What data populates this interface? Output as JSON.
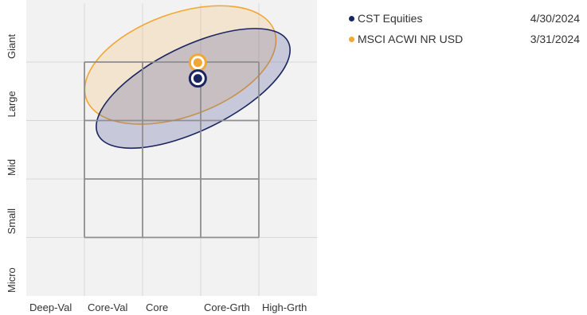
{
  "chart_data": {
    "type": "scatter",
    "title": "",
    "x_categories": [
      "Deep-Val",
      "Core-Val",
      "Core",
      "Core-Grth",
      "High-Grth"
    ],
    "y_categories": [
      "Micro",
      "Small",
      "Mid",
      "Large",
      "Giant"
    ],
    "series": [
      {
        "name": "CST Equities",
        "date": "4/30/2024",
        "color": "#1b2560",
        "point": {
          "x": 2.95,
          "y": 3.72
        },
        "ellipse": {
          "cx": 2.87,
          "cy": 3.55,
          "rx": 1.82,
          "ry": 0.72,
          "angle_deg": -26
        }
      },
      {
        "name": "MSCI ACWI NR USD",
        "date": "3/31/2024",
        "color": "#f2a633",
        "point": {
          "x": 2.95,
          "y": 3.99
        },
        "ellipse": {
          "cx": 2.65,
          "cy": 3.95,
          "rx": 1.72,
          "ry": 0.88,
          "angle_deg": -20
        }
      }
    ],
    "grid": true,
    "legend_position": "right"
  }
}
